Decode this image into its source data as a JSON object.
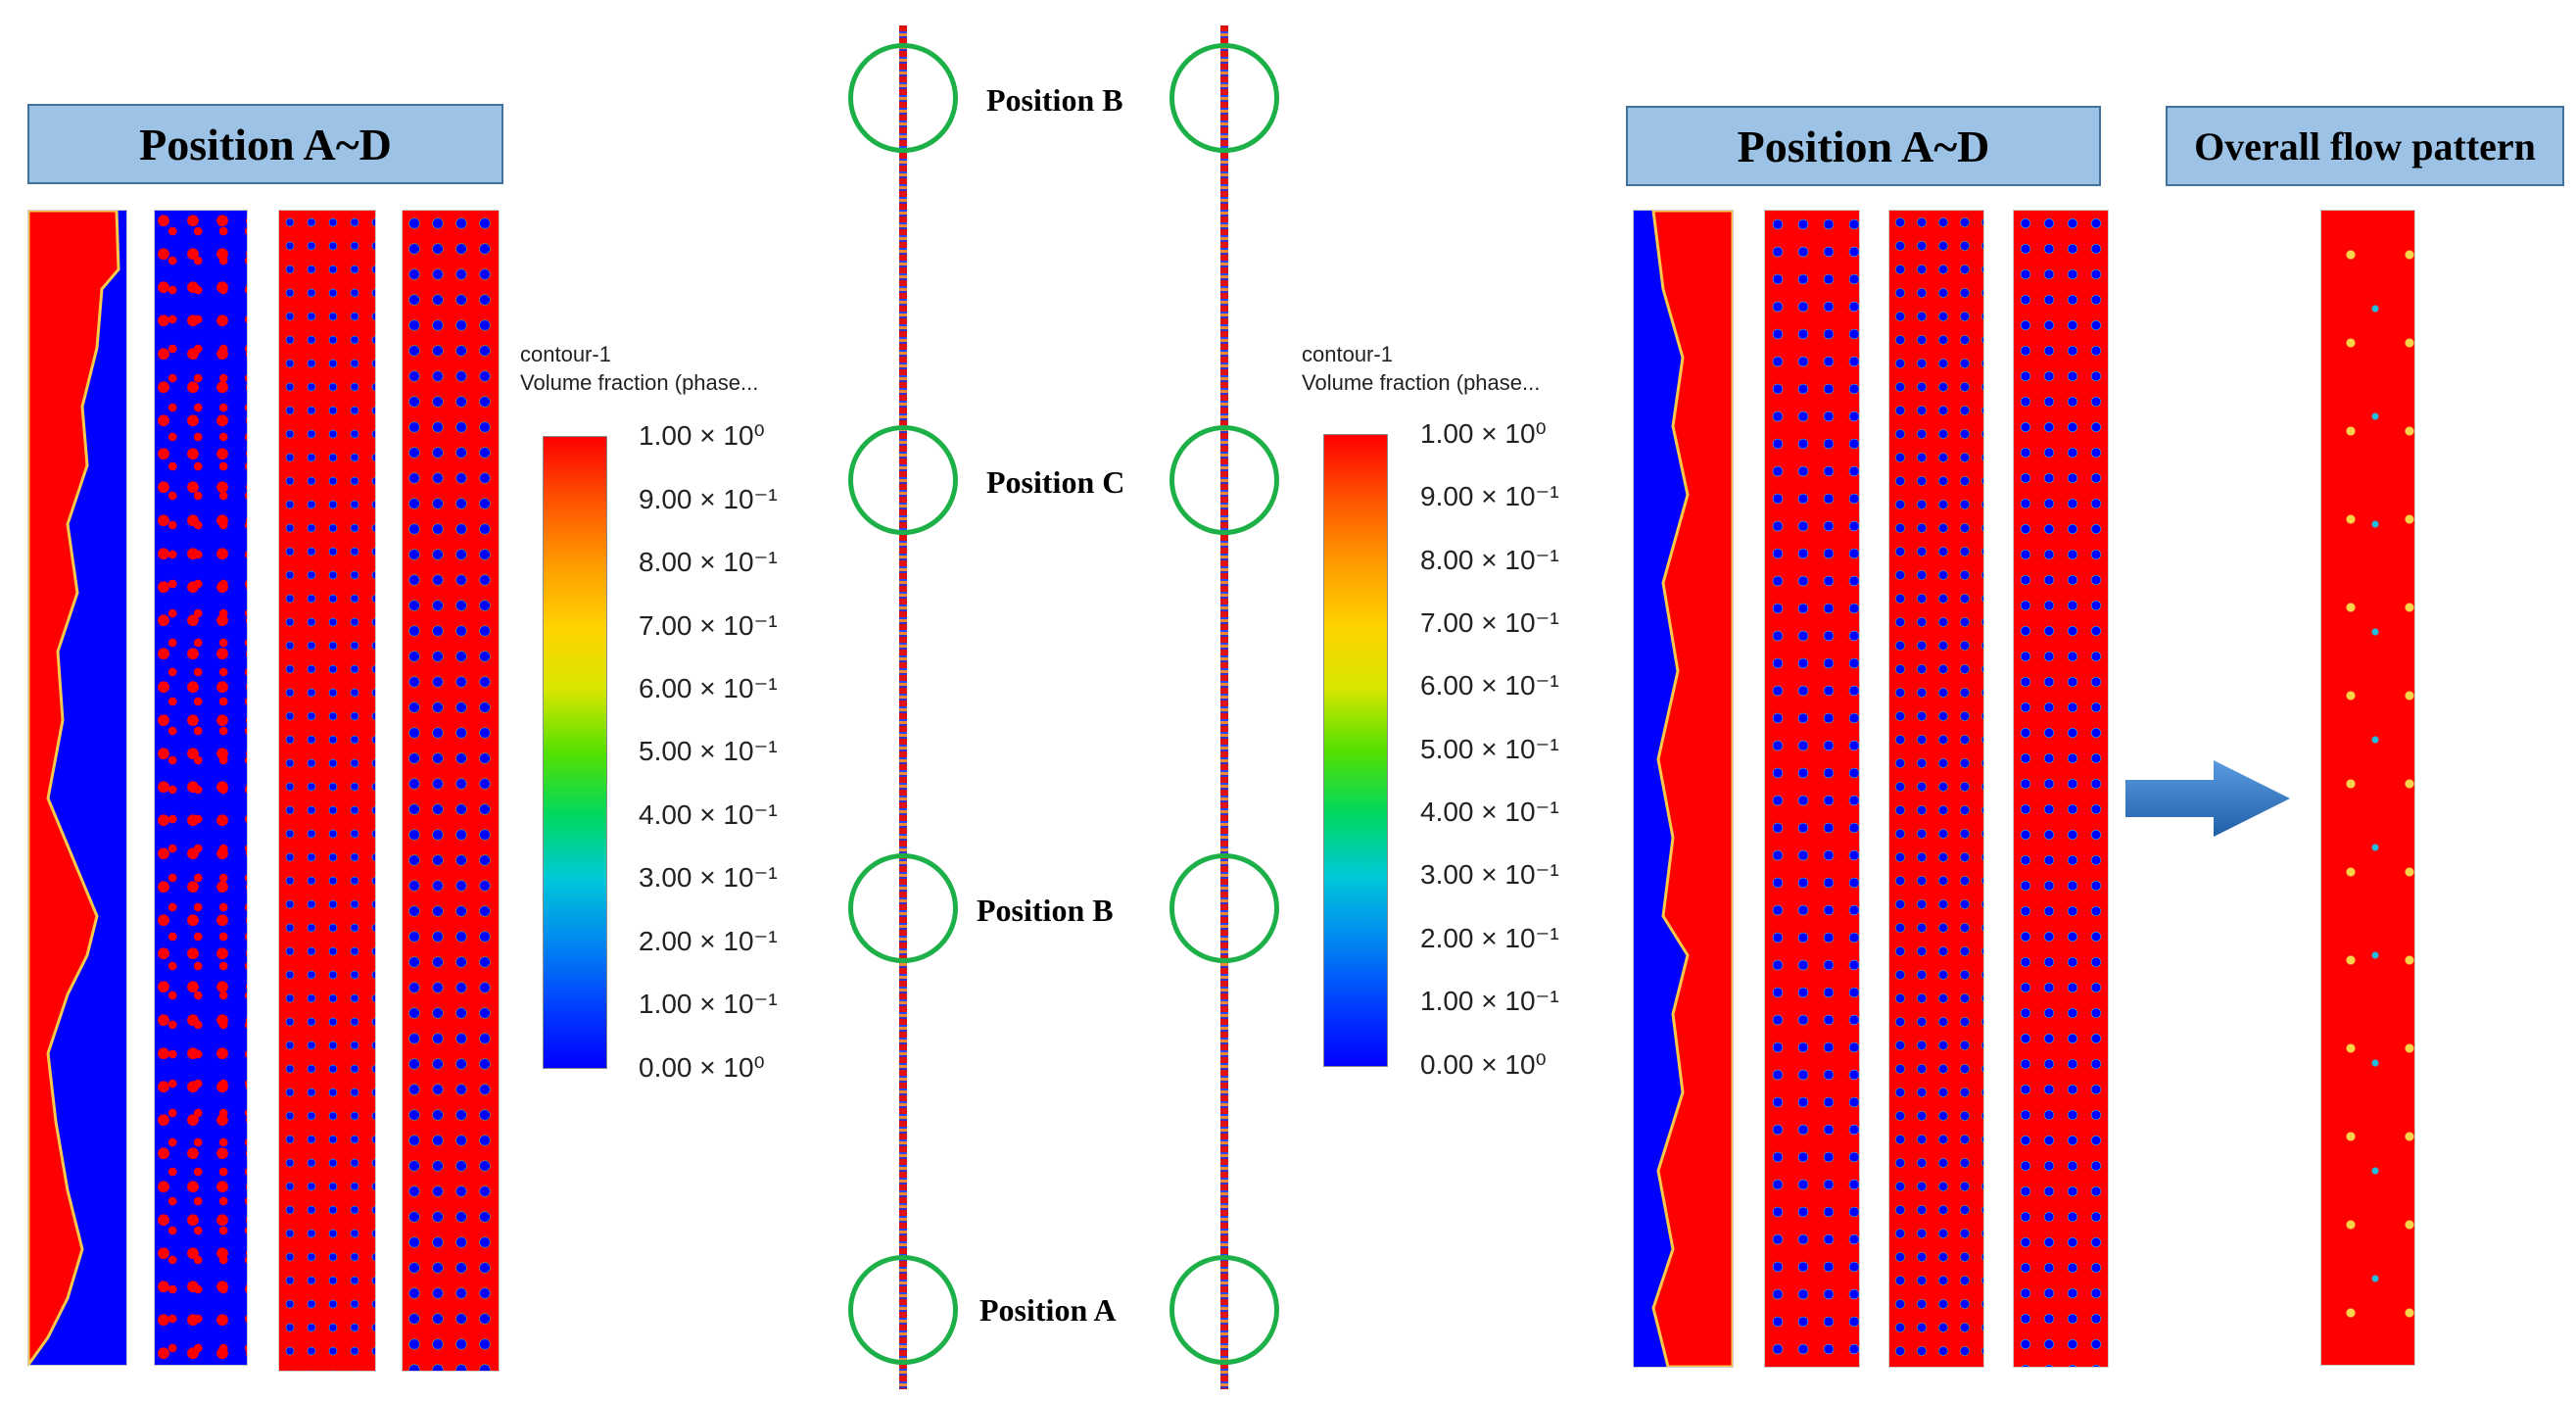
{
  "left_banner": "Position A~D",
  "right_banner": "Position A~D",
  "overall_banner": "Overall flow pattern",
  "colorbar_left": {
    "title_line1": "contour-1",
    "title_line2": "Volume fraction (phase...",
    "ticks": [
      "1.00 × 10⁰",
      "9.00 × 10⁻¹",
      "8.00 × 10⁻¹",
      "7.00 × 10⁻¹",
      "6.00 × 10⁻¹",
      "5.00 × 10⁻¹",
      "4.00 × 10⁻¹",
      "3.00 × 10⁻¹",
      "2.00 × 10⁻¹",
      "1.00 × 10⁻¹",
      "0.00 × 10⁰"
    ]
  },
  "colorbar_right": {
    "title_line1": "contour-1",
    "title_line2": "Volume fraction (phase...",
    "ticks": [
      "1.00 × 10⁰",
      "9.00 × 10⁻¹",
      "8.00 × 10⁻¹",
      "7.00 × 10⁻¹",
      "6.00 × 10⁻¹",
      "5.00 × 10⁻¹",
      "4.00 × 10⁻¹",
      "3.00 × 10⁻¹",
      "2.00 × 10⁻¹",
      "1.00 × 10⁻¹",
      "0.00 × 10⁰"
    ]
  },
  "position_labels": [
    "Position B",
    "Position C",
    "Position B",
    "Position A"
  ],
  "colors": {
    "red_phase": "#ff0000",
    "blue_phase": "#0000ff",
    "ring": "#1db048",
    "banner": "#9cc3e5",
    "arrow": "#2e75c6"
  }
}
